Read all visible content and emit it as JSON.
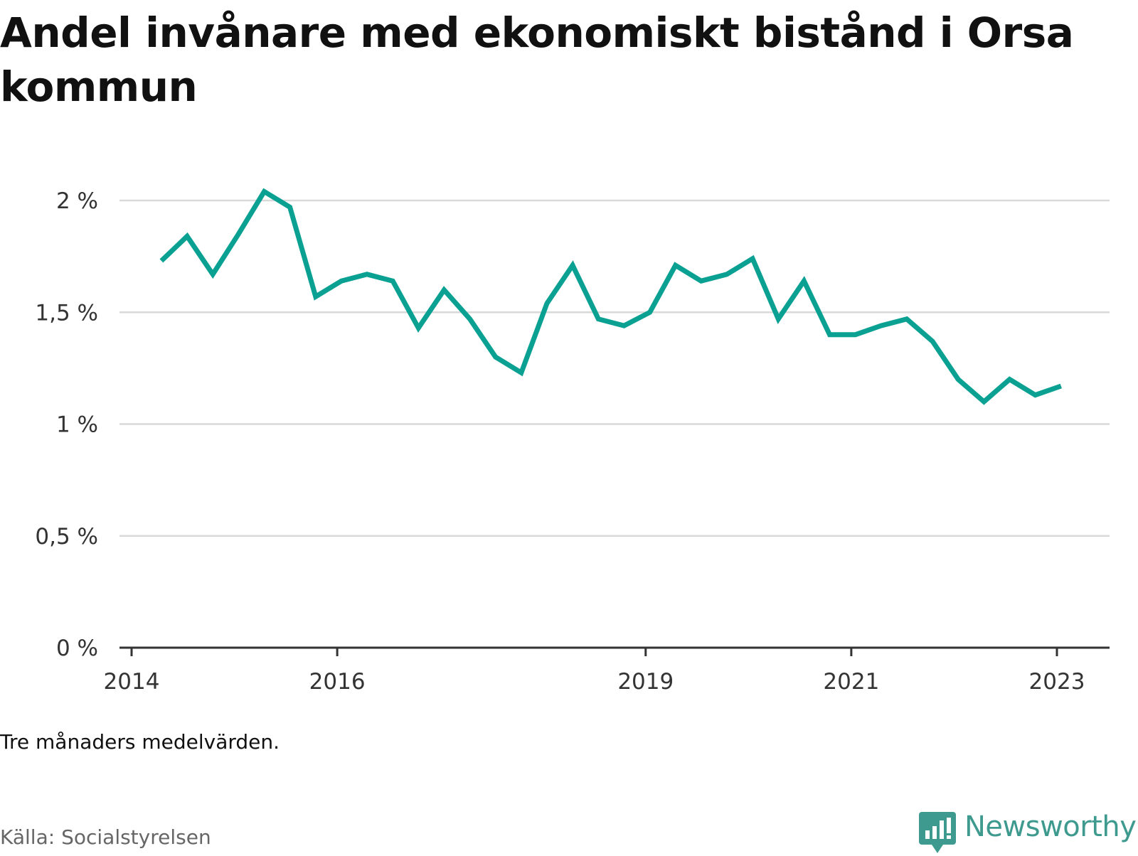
{
  "title": "Andel invånare med ekonomiskt bistånd i Orsa kommun",
  "note": "Tre månaders medelvärden.",
  "source": "Källa: Socialstyrelsen",
  "brand": {
    "name": "Newsworthy",
    "icon": "newsworthy-logo-icon",
    "color": "#3e9a8e"
  },
  "chart_data": {
    "type": "line",
    "title": "Andel invånare med ekonomiskt bistånd i Orsa kommun",
    "xlabel": "",
    "ylabel": "",
    "ylim": [
      0,
      2.1
    ],
    "y_ticks": [
      {
        "value": 0,
        "label": "0 %"
      },
      {
        "value": 0.5,
        "label": "0,5 %"
      },
      {
        "value": 1,
        "label": "1 %"
      },
      {
        "value": 1.5,
        "label": "1,5 %"
      },
      {
        "value": 2,
        "label": "2 %"
      }
    ],
    "x_ticks": [
      {
        "value": 2014.0,
        "label": "2014"
      },
      {
        "value": 2016.0,
        "label": "2016"
      },
      {
        "value": 2019.0,
        "label": "2019"
      },
      {
        "value": 2021.0,
        "label": "2021"
      },
      {
        "value": 2023.0,
        "label": "2023"
      }
    ],
    "grid": true,
    "color": "#0aa193",
    "series": [
      {
        "name": "",
        "points": [
          [
            2014.29,
            1.73
          ],
          [
            2014.54,
            1.84
          ],
          [
            2014.79,
            1.67
          ],
          [
            2015.04,
            1.85
          ],
          [
            2015.29,
            2.04
          ],
          [
            2015.54,
            1.97
          ],
          [
            2015.79,
            1.57
          ],
          [
            2016.04,
            1.64
          ],
          [
            2016.29,
            1.67
          ],
          [
            2016.54,
            1.64
          ],
          [
            2016.79,
            1.43
          ],
          [
            2017.04,
            1.6
          ],
          [
            2017.29,
            1.47
          ],
          [
            2017.54,
            1.3
          ],
          [
            2017.79,
            1.23
          ],
          [
            2018.04,
            1.54
          ],
          [
            2018.29,
            1.71
          ],
          [
            2018.54,
            1.47
          ],
          [
            2018.79,
            1.44
          ],
          [
            2019.04,
            1.5
          ],
          [
            2019.29,
            1.71
          ],
          [
            2019.54,
            1.64
          ],
          [
            2019.79,
            1.67
          ],
          [
            2020.04,
            1.74
          ],
          [
            2020.29,
            1.47
          ],
          [
            2020.54,
            1.64
          ],
          [
            2020.79,
            1.4
          ],
          [
            2021.04,
            1.4
          ],
          [
            2021.29,
            1.44
          ],
          [
            2021.54,
            1.47
          ],
          [
            2021.79,
            1.37
          ],
          [
            2022.04,
            1.2
          ],
          [
            2022.29,
            1.1
          ],
          [
            2022.54,
            1.2
          ],
          [
            2022.79,
            1.13
          ],
          [
            2023.04,
            1.17
          ]
        ]
      }
    ]
  }
}
